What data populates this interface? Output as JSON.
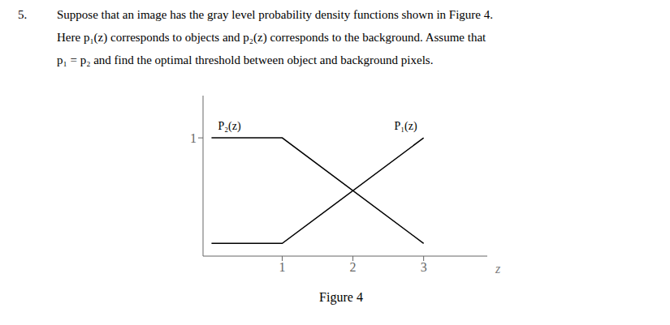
{
  "chart_data": {
    "type": "line",
    "title": "Figure 4",
    "annotations": [
      "5.",
      "Suppose that an image has the gray level probability density functions shown in Figure 4.",
      "Here p₁(z) corresponds to objects and p₂(z) corresponds to the background. Assume that",
      "p₁ = p₂ and find the optimal threshold between object and background pixels."
    ],
    "x_label": "z",
    "x": [
      0,
      1,
      3
    ],
    "series": [
      {
        "name": "P₂(z)",
        "values": [
          1,
          1,
          0
        ]
      },
      {
        "name": "P₁(z)",
        "values": [
          0,
          0,
          1
        ]
      }
    ],
    "color": "#000000",
    "xlim": [
      -0.12,
      3.9
    ],
    "xticks": [
      1,
      2,
      3
    ],
    "ylim": [
      -0.12,
      1.4
    ],
    "yticks": [
      1
    ],
    "grid": false
  }
}
